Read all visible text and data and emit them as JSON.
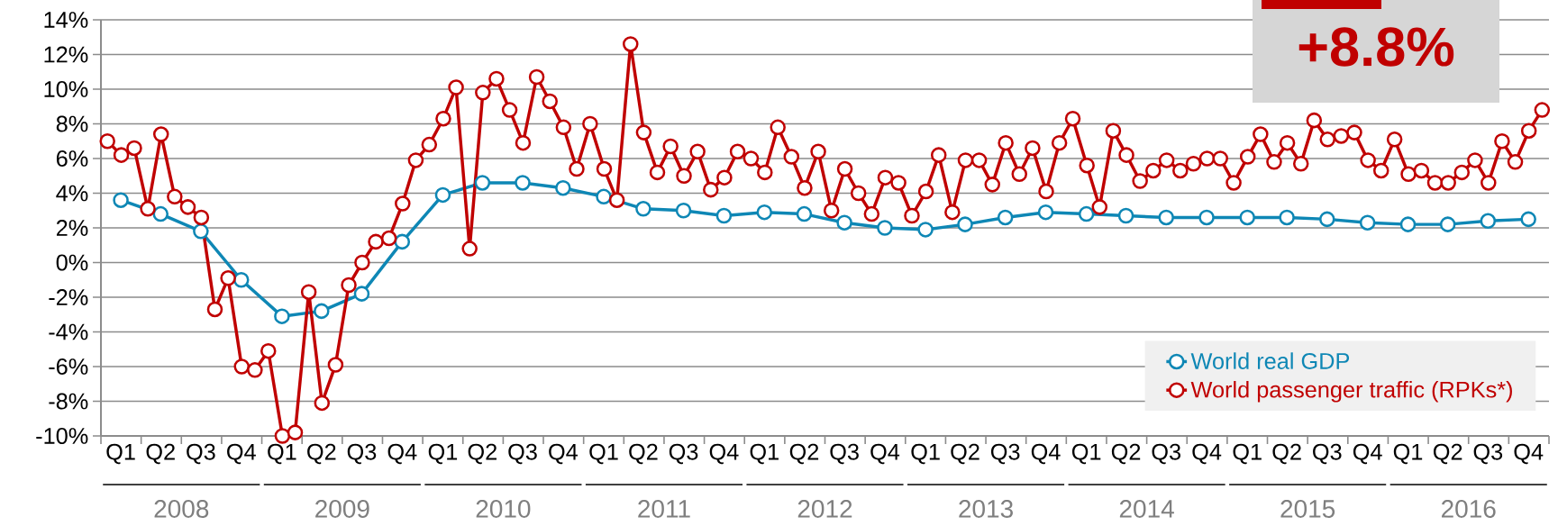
{
  "chart_data": {
    "type": "line",
    "xlim": [
      "2008-01-01",
      "2017-01-01"
    ],
    "xticks": [
      {
        "value": "2008-01-01",
        "label": null
      },
      {
        "value": "2008-02-15",
        "label": "Q1"
      },
      {
        "value": "2008-04-01",
        "label": null
      },
      {
        "value": "2008-05-15",
        "label": "Q2"
      },
      {
        "value": "2008-07-01",
        "label": null
      },
      {
        "value": "2008-08-15",
        "label": "Q3"
      },
      {
        "value": "2008-10-01",
        "label": null
      },
      {
        "value": "2008-11-15",
        "label": "Q4"
      },
      {
        "value": "2009-01-01",
        "label": null
      },
      {
        "value": "2009-02-15",
        "label": "Q1"
      },
      {
        "value": "2009-04-01",
        "label": null
      },
      {
        "value": "2009-05-15",
        "label": "Q2"
      },
      {
        "value": "2009-07-01",
        "label": null
      },
      {
        "value": "2009-08-15",
        "label": "Q3"
      },
      {
        "value": "2009-10-01",
        "label": null
      },
      {
        "value": "2009-11-15",
        "label": "Q4"
      },
      {
        "value": "2010-01-01",
        "label": null
      },
      {
        "value": "2010-02-15",
        "label": "Q1"
      },
      {
        "value": "2010-04-01",
        "label": null
      },
      {
        "value": "2010-05-15",
        "label": "Q2"
      },
      {
        "value": "2010-07-01",
        "label": null
      },
      {
        "value": "2010-08-15",
        "label": "Q3"
      },
      {
        "value": "2010-10-01",
        "label": null
      },
      {
        "value": "2010-11-15",
        "label": "Q4"
      },
      {
        "value": "2011-01-01",
        "label": null
      },
      {
        "value": "2011-02-15",
        "label": "Q1"
      },
      {
        "value": "2011-04-01",
        "label": null
      },
      {
        "value": "2011-05-15",
        "label": "Q2"
      },
      {
        "value": "2011-07-01",
        "label": null
      },
      {
        "value": "2011-08-15",
        "label": "Q3"
      },
      {
        "value": "2011-10-01",
        "label": null
      },
      {
        "value": "2011-11-15",
        "label": "Q4"
      },
      {
        "value": "2012-01-01",
        "label": null
      },
      {
        "value": "2012-02-15",
        "label": "Q1"
      },
      {
        "value": "2012-04-01",
        "label": null
      },
      {
        "value": "2012-05-15",
        "label": "Q2"
      },
      {
        "value": "2012-07-01",
        "label": null
      },
      {
        "value": "2012-08-15",
        "label": "Q3"
      },
      {
        "value": "2012-10-01",
        "label": null
      },
      {
        "value": "2012-11-15",
        "label": "Q4"
      },
      {
        "value": "2013-01-01",
        "label": null
      },
      {
        "value": "2013-02-15",
        "label": "Q1"
      },
      {
        "value": "2013-04-01",
        "label": null
      },
      {
        "value": "2013-05-15",
        "label": "Q2"
      },
      {
        "value": "2013-07-01",
        "label": null
      },
      {
        "value": "2013-08-15",
        "label": "Q3"
      },
      {
        "value": "2013-10-01",
        "label": null
      },
      {
        "value": "2013-11-15",
        "label": "Q4"
      },
      {
        "value": "2014-01-01",
        "label": null
      },
      {
        "value": "2014-02-15",
        "label": "Q1"
      },
      {
        "value": "2014-04-01",
        "label": null
      },
      {
        "value": "2014-05-15",
        "label": "Q2"
      },
      {
        "value": "2014-07-01",
        "label": null
      },
      {
        "value": "2014-08-15",
        "label": "Q3"
      },
      {
        "value": "2014-10-01",
        "label": null
      },
      {
        "value": "2014-11-15",
        "label": "Q4"
      },
      {
        "value": "2015-01-01",
        "label": null
      },
      {
        "value": "2015-02-15",
        "label": "Q1"
      },
      {
        "value": "2015-04-01",
        "label": null
      },
      {
        "value": "2015-05-15",
        "label": "Q2"
      },
      {
        "value": "2015-07-01",
        "label": null
      },
      {
        "value": "2015-08-15",
        "label": "Q3"
      },
      {
        "value": "2015-10-01",
        "label": null
      },
      {
        "value": "2015-11-15",
        "label": "Q4"
      },
      {
        "value": "2016-01-01",
        "label": null
      },
      {
        "value": "2016-02-15",
        "label": "Q1"
      },
      {
        "value": "2016-04-01",
        "label": null
      },
      {
        "value": "2016-05-15",
        "label": "Q2"
      },
      {
        "value": "2016-07-01",
        "label": null
      },
      {
        "value": "2016-08-15",
        "label": "Q3"
      },
      {
        "value": "2016-10-01",
        "label": null
      },
      {
        "value": "2016-11-15",
        "label": "Q4"
      },
      {
        "value": "2017-01-01",
        "label": null
      }
    ],
    "ylim": [
      -10,
      14
    ],
    "yticks": [
      {
        "value": -10,
        "label": "-10%"
      },
      {
        "value": -8,
        "label": "-8%"
      },
      {
        "value": -6,
        "label": "-6%"
      },
      {
        "value": -4,
        "label": "-4%"
      },
      {
        "value": -2,
        "label": "-2%"
      },
      {
        "value": 0,
        "label": "0%"
      },
      {
        "value": 2,
        "label": "2%"
      },
      {
        "value": 4,
        "label": "4%"
      },
      {
        "value": 6,
        "label": "6%"
      },
      {
        "value": 8,
        "label": "8%"
      },
      {
        "value": 10,
        "label": "10%"
      },
      {
        "value": 12,
        "label": "12%"
      },
      {
        "value": 14,
        "label": "14%"
      }
    ],
    "grid": "y",
    "legend": "bottom right",
    "marker": "circle",
    "line_style": "solid",
    "annotations": [
      "+8.8%",
      "2008",
      "2009",
      "2010",
      "2011",
      "2012",
      "2013",
      "2014",
      "2015",
      "2016"
    ],
    "series": [
      {
        "name": "World real GDP",
        "color": "#0e87b5",
        "x": [
          "2008-02-15",
          "2008-05-15",
          "2008-08-15",
          "2008-11-15",
          "2009-02-15",
          "2009-05-15",
          "2009-08-15",
          "2009-11-15",
          "2010-02-15",
          "2010-05-15",
          "2010-08-15",
          "2010-11-15",
          "2011-02-15",
          "2011-05-15",
          "2011-08-15",
          "2011-11-15",
          "2012-02-15",
          "2012-05-15",
          "2012-08-15",
          "2012-11-15",
          "2013-02-15",
          "2013-05-15",
          "2013-08-15",
          "2013-11-15",
          "2014-02-15",
          "2014-05-15",
          "2014-08-15",
          "2014-11-15",
          "2015-02-15",
          "2015-05-15",
          "2015-08-15",
          "2015-11-15",
          "2016-02-15",
          "2016-05-15",
          "2016-08-15",
          "2016-11-15"
        ],
        "values": [
          3.6,
          2.8,
          1.8,
          -1.0,
          -3.1,
          -2.8,
          -1.8,
          1.2,
          3.9,
          4.6,
          4.6,
          4.3,
          3.8,
          3.1,
          3.0,
          2.7,
          2.9,
          2.8,
          2.3,
          2.0,
          1.9,
          2.2,
          2.6,
          2.9,
          2.8,
          2.7,
          2.6,
          2.6,
          2.6,
          2.6,
          2.5,
          2.3,
          2.2,
          2.2,
          2.4,
          2.5
        ]
      },
      {
        "name": "World passenger traffic (RPKs*)",
        "color": "#c00000",
        "x": [
          "2008-01-16",
          "2008-02-16",
          "2008-03-16",
          "2008-04-16",
          "2008-05-16",
          "2008-06-16",
          "2008-07-16",
          "2008-08-16",
          "2008-09-16",
          "2008-10-16",
          "2008-11-16",
          "2008-12-16",
          "2009-01-16",
          "2009-02-16",
          "2009-03-16",
          "2009-04-16",
          "2009-05-16",
          "2009-06-16",
          "2009-07-16",
          "2009-08-16",
          "2009-09-16",
          "2009-10-16",
          "2009-11-16",
          "2009-12-16",
          "2010-01-16",
          "2010-02-16",
          "2010-03-16",
          "2010-04-16",
          "2010-05-16",
          "2010-06-16",
          "2010-07-16",
          "2010-08-16",
          "2010-09-16",
          "2010-10-16",
          "2010-11-16",
          "2010-12-16",
          "2011-01-16",
          "2011-02-16",
          "2011-03-16",
          "2011-04-16",
          "2011-05-16",
          "2011-06-16",
          "2011-07-16",
          "2011-08-16",
          "2011-09-16",
          "2011-10-16",
          "2011-11-16",
          "2011-12-16",
          "2012-01-16",
          "2012-02-16",
          "2012-03-16",
          "2012-04-16",
          "2012-05-16",
          "2012-06-16",
          "2012-07-16",
          "2012-08-16",
          "2012-09-16",
          "2012-10-16",
          "2012-11-16",
          "2012-12-16",
          "2013-01-16",
          "2013-02-16",
          "2013-03-16",
          "2013-04-16",
          "2013-05-16",
          "2013-06-16",
          "2013-07-16",
          "2013-08-16",
          "2013-09-16",
          "2013-10-16",
          "2013-11-16",
          "2013-12-16",
          "2014-01-16",
          "2014-02-16",
          "2014-03-16",
          "2014-04-16",
          "2014-05-16",
          "2014-06-16",
          "2014-07-16",
          "2014-08-16",
          "2014-09-16",
          "2014-10-16",
          "2014-11-16",
          "2014-12-16",
          "2015-01-16",
          "2015-02-16",
          "2015-03-16",
          "2015-04-16",
          "2015-05-16",
          "2015-06-16",
          "2015-07-16",
          "2015-08-16",
          "2015-09-16",
          "2015-10-16",
          "2015-11-16",
          "2015-12-16",
          "2016-01-16",
          "2016-02-16",
          "2016-03-16",
          "2016-04-16",
          "2016-05-16",
          "2016-06-16",
          "2016-07-16",
          "2016-08-16",
          "2016-09-16",
          "2016-10-16",
          "2016-11-16",
          "2016-12-16"
        ],
        "values": [
          7.0,
          6.2,
          6.6,
          3.1,
          7.4,
          3.8,
          3.2,
          2.6,
          -2.7,
          -0.9,
          -6.0,
          -6.2,
          -5.1,
          -10,
          -9.8,
          -1.7,
          -8.1,
          -5.9,
          -1.3,
          0.0,
          1.2,
          1.4,
          3.4,
          5.9,
          6.8,
          8.3,
          10.1,
          0.8,
          9.8,
          10.6,
          8.8,
          6.9,
          10.7,
          9.3,
          7.8,
          5.4,
          8.0,
          5.4,
          3.6,
          12.6,
          7.5,
          5.2,
          6.7,
          5.0,
          6.4,
          4.2,
          4.9,
          6.4,
          6.0,
          5.2,
          7.8,
          6.1,
          4.3,
          6.4,
          3.0,
          5.4,
          4.0,
          2.8,
          4.9,
          4.6,
          2.7,
          4.1,
          6.2,
          2.9,
          5.9,
          5.9,
          4.5,
          6.9,
          5.1,
          6.6,
          4.1,
          6.9,
          8.3,
          5.6,
          3.2,
          7.6,
          6.2,
          4.7,
          5.3,
          5.9,
          5.3,
          5.7,
          6.0,
          6.0,
          4.6,
          6.1,
          7.4,
          5.8,
          6.9,
          5.7,
          8.2,
          7.1,
          7.3,
          7.5,
          5.9,
          5.3,
          7.1,
          5.1,
          5.3,
          4.6,
          4.6,
          5.2,
          5.9,
          4.6,
          7.0,
          5.8,
          7.6,
          8.8
        ]
      }
    ]
  }
}
